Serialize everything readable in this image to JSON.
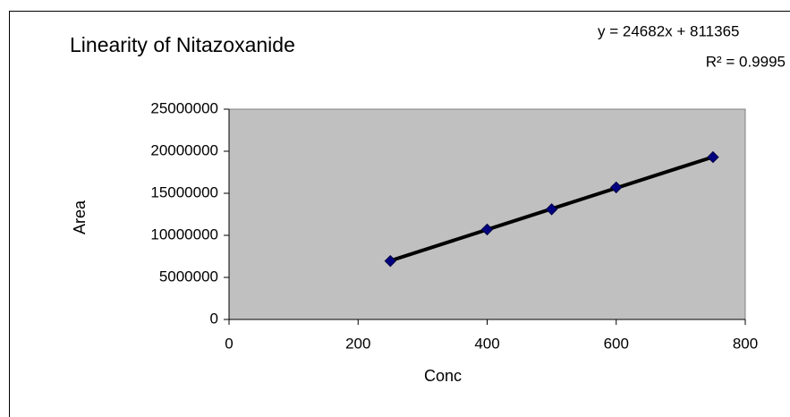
{
  "chart_data": {
    "type": "scatter",
    "title": "Linearity of  Nitazoxanide",
    "x_label": "Conc",
    "y_label": "Area",
    "x": [
      250,
      400,
      500,
      600,
      750
    ],
    "series": [
      {
        "name": "Area",
        "color": "#000080",
        "values": [
          6950000,
          10700000,
          13100000,
          15700000,
          19300000
        ]
      }
    ],
    "trendline": {
      "slope": 24682,
      "intercept": 811365,
      "color": "#000000",
      "equation": "y = 24682x + 811365",
      "r2": "R² = 0.9995"
    },
    "xlim": [
      0,
      800
    ],
    "xticks": [
      0,
      200,
      400,
      600,
      800
    ],
    "ylim": [
      0,
      25000000
    ],
    "yticks": [
      0,
      5000000,
      10000000,
      15000000,
      20000000,
      25000000
    ],
    "plot_background": "#c0c0c0",
    "grid": false
  }
}
